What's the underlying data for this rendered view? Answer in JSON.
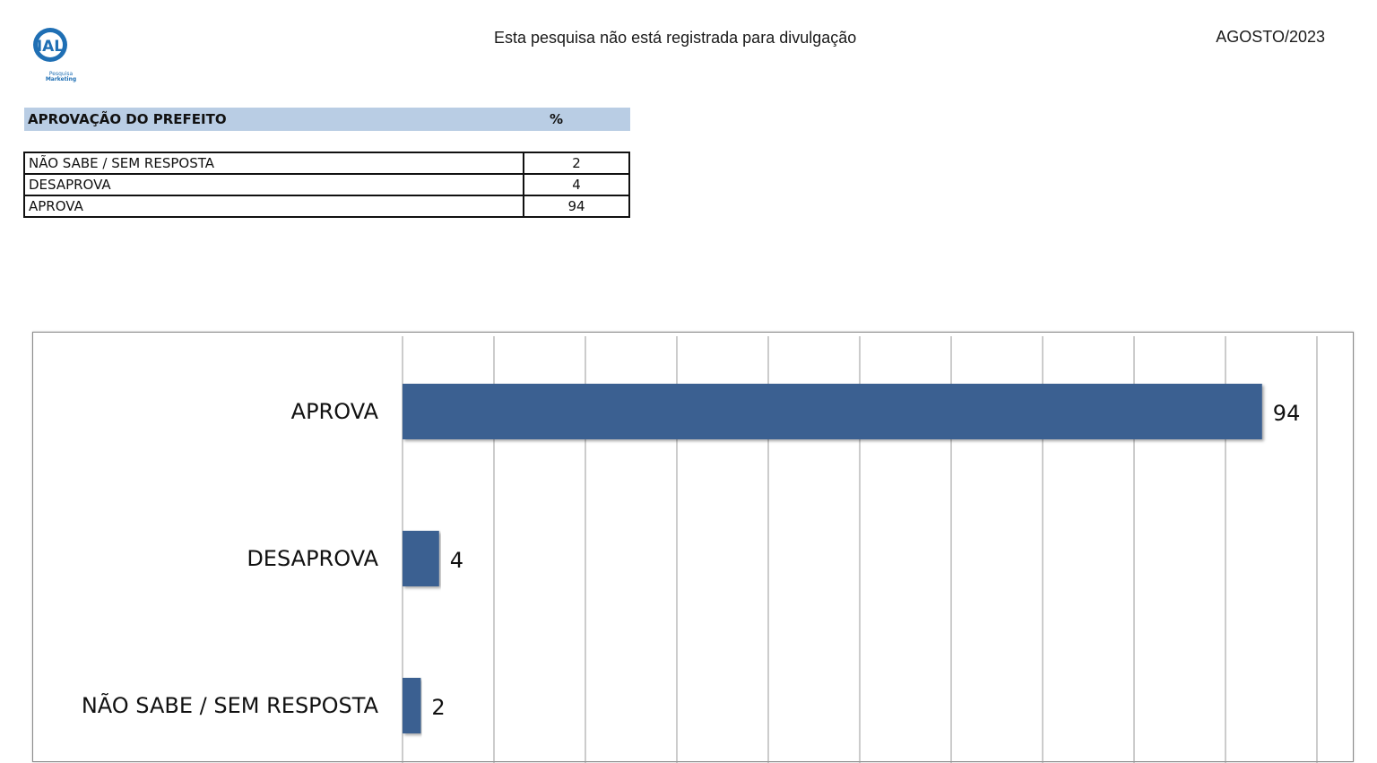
{
  "header": {
    "logo_text": "IAL",
    "logo_subtext": "Pesquisa Marketing",
    "notice": "Esta pesquisa não está registrada para divulgação",
    "date": "AGOSTO/2023"
  },
  "table": {
    "title": "APROVAÇÃO DO PREFEITO",
    "value_header": "%",
    "rows": [
      {
        "label": "NÃO SABE / SEM RESPOSTA",
        "value": "2"
      },
      {
        "label": "DESAPROVA",
        "value": "4"
      },
      {
        "label": "APROVA",
        "value": "94"
      }
    ]
  },
  "colors": {
    "bar": "#3a6191",
    "header_band": "#b9cde4",
    "logo_blue": "#1f6fb4"
  },
  "chart_data": {
    "type": "bar",
    "orientation": "horizontal",
    "categories": [
      "APROVA",
      "DESAPROVA",
      "NÃO SABE / SEM RESPOSTA"
    ],
    "values": [
      94,
      4,
      2
    ],
    "xlim": [
      0,
      100
    ],
    "grid": true,
    "title": "",
    "xlabel": "",
    "ylabel": ""
  }
}
